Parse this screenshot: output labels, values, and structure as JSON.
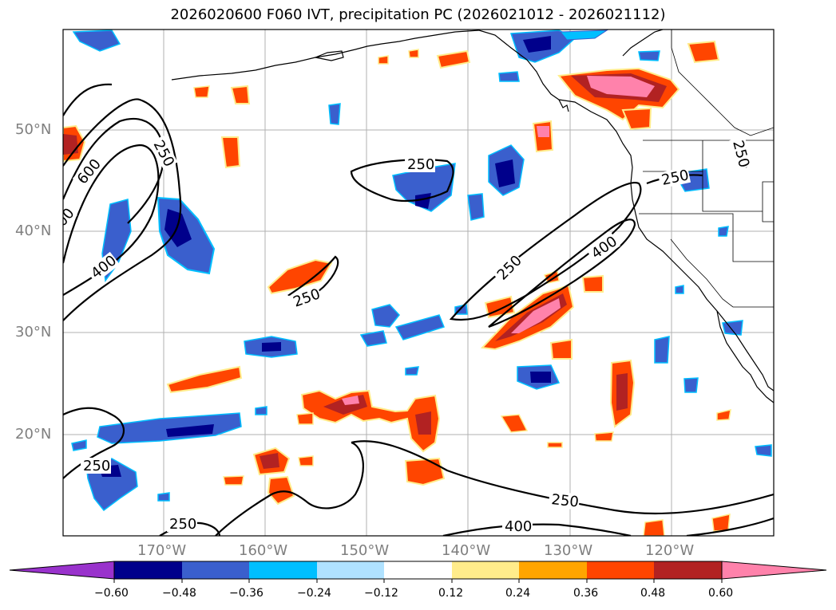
{
  "title": "2026020600 F060 IVT, precipitation PC (2026021012 - 2026021112)",
  "map": {
    "lat_ticks": [
      "50°N",
      "40°N",
      "30°N",
      "20°N"
    ],
    "lon_ticks": [
      "170°W",
      "160°W",
      "150°W",
      "140°W",
      "130°W",
      "120°W"
    ],
    "contour_labels": [
      "250",
      "600",
      "400",
      "250",
      "250",
      "400",
      "250",
      "250",
      "250",
      "250",
      "250",
      "400",
      "250",
      "00"
    ]
  },
  "colorbar": {
    "ticks": [
      "−0.60",
      "−0.48",
      "−0.36",
      "−0.24",
      "−0.12",
      "0.12",
      "0.24",
      "0.36",
      "0.48",
      "0.60"
    ],
    "colors": {
      "under": "#9932cc",
      "c1": "#00008b",
      "c2": "#3a5fcd",
      "c3": "#00bfff",
      "c4": "#b0e2ff",
      "c5": "#ffffff",
      "c6": "#ffec8b",
      "c7": "#ffa500",
      "c8": "#ff4500",
      "c9": "#b22222",
      "over": "#ff82ab"
    }
  }
}
